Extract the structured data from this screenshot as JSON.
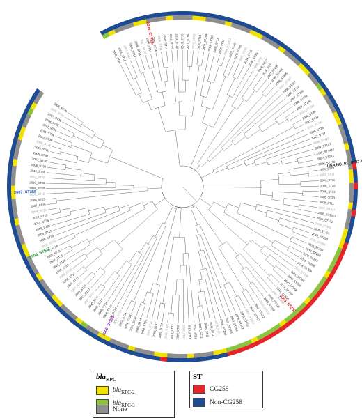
{
  "colors": {
    "yellow": "#f2e200",
    "green": "#8bc53f",
    "grey": "#8e8e8e",
    "red": "#e8242b",
    "blue": "#1f4b92",
    "branch": "#555555",
    "label_red": "#d71920",
    "label_blue": "#1f4fbf",
    "label_green": "#1a9a3a",
    "label_purple": "#7a2a9a"
  },
  "legend_kpc": {
    "title_main": "bla",
    "title_sub": "KPC",
    "items": [
      {
        "main": "bla",
        "sub": "KPC-2",
        "color": "#f2e200"
      },
      {
        "main": "bla",
        "sub": "KPC-3",
        "color": "#8bc53f"
      },
      {
        "main": "None",
        "sub": "",
        "color": "#8e8e8e"
      }
    ]
  },
  "legend_st": {
    "title": "ST",
    "items": [
      {
        "label": "CG258",
        "color": "#e8242b"
      },
      {
        "label": "Non-CG258",
        "color": "#1f4b92"
      }
    ]
  },
  "highlighted": [
    {
      "label": "2006_ST258",
      "color": "#d71920"
    },
    {
      "label": "USA NC_01_ST37-4",
      "color": "#111111"
    },
    {
      "label": "2007_ST258",
      "color": "#1f4fbf"
    },
    {
      "label": "2006_ST512",
      "color": "#1a9a3a"
    },
    {
      "label": "2006_ST258",
      "color": "#7a2a9a"
    },
    {
      "label": "2005_ST337",
      "color": "#d71920"
    }
  ],
  "leaves": [
    "2008_ST14",
    "2006_ST14",
    "2007_ST14",
    "2009_ST14",
    "2006_ST14",
    "2007_ST14",
    "2005_ST14",
    "2008_ST14",
    "2006_ST14",
    "2004_ST14",
    "2012_ST15",
    "2014_ST15",
    "2013_ST15",
    "2011_ST15",
    "2010_ST13",
    "2006_ST13",
    "2008_ST299",
    "2009_ST290",
    "2005_ST13",
    "2007_ST13",
    "2004_ST2411",
    "2007_ST45",
    "2008_ST45",
    "2005_ST45",
    "2009_ST35",
    "2008_ST353",
    "2009_ST8",
    "2008_ST77",
    "2006_ST2",
    "2007_ST405",
    "2009_ST405",
    "2008_ST405",
    "2007_ST307",
    "2006_ST307",
    "2005_ST307",
    "2007_ST305",
    "2009_ST392",
    "2008_ST290",
    "2010_ST198",
    "2006_ST39",
    "2011_ST39",
    "2010_ST392",
    "2006_ST39",
    "2012_ST17",
    "2009_ST429",
    "2004_ST147",
    "2008_ST1432",
    "2007_ST273",
    "2006_ST133",
    "2005_ST70",
    "2003_ST11",
    "2007_ST11",
    "2005_ST45",
    "2006_ST23",
    "2008_ST23",
    "2009_ST11",
    "2007_ST437",
    "2006_ST1321",
    "2004_ST101",
    "2008_ST101",
    "2009_ST101",
    "2010_ST258",
    "2011_ST258",
    "2009_ST258",
    "2012_ST258",
    "2008_ST258",
    "2010_ST258",
    "2013_ST258",
    "2012_ST258",
    "2011_ST258",
    "2009_ST258",
    "2010_ST258",
    "2011_ST258",
    "2012_ST258",
    "2007_ST258",
    "2008_ST258",
    "2009_ST258",
    "2010_ST512",
    "2011_ST512",
    "2012_ST512",
    "2007_ST512",
    "2008_ST512",
    "2006_ST512",
    "2009_ST258",
    "2007_ST258",
    "2006_ST258",
    "2008_ST11",
    "2009_ST11",
    "2005_ST11",
    "2007_ST11",
    "2012_ST11",
    "2010_ST11",
    "2008_ST11",
    "2009_ST37",
    "2010_ST37",
    "2011_ST37",
    "2007_ST37",
    "2008_ST37",
    "2005_ST37",
    "2006_ST37",
    "2009_ST34",
    "2010_ST34",
    "2011_ST34",
    "2012_ST34",
    "2007_ST34",
    "2008_ST34",
    "2006_ST34",
    "2005_ST34",
    "2009_ST17",
    "2010_ST17",
    "2011_ST17",
    "2012_ST17",
    "2008_ST17",
    "2007_ST17",
    "2006_ST17",
    "2005_ST17",
    "2009_ST20",
    "2010_ST20",
    "2011_ST20",
    "2012_ST20",
    "2008_ST20",
    "2007_ST20",
    "2006_ST20",
    "2005_ST20",
    "2009_ST25",
    "2010_ST25",
    "2011_ST25",
    "2012_ST25",
    "2008_ST25",
    "2007_ST25",
    "2006_ST25",
    "2005_ST25",
    "2009_ST30",
    "2010_ST30",
    "2011_ST30",
    "2012_ST30",
    "2008_ST30",
    "2007_ST30",
    "2006_ST30",
    "2005_ST30",
    "2009_ST36",
    "2010_ST36",
    "2011_ST36",
    "2012_ST36",
    "2008_ST36",
    "2007_ST36",
    "2006_ST36",
    "2005_ST36"
  ]
}
